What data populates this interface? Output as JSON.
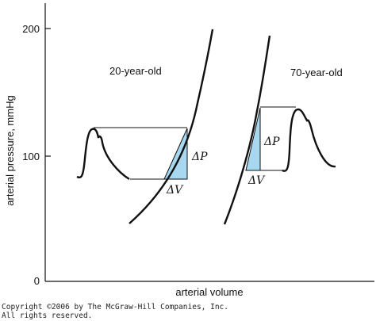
{
  "figure": {
    "y_axis_label": "arterial pressure, mmHg",
    "x_axis_label": "arterial volume",
    "y_ticks": [
      "200",
      "100",
      "0"
    ],
    "curves": [
      {
        "label": "20-year-old",
        "delta_p": "ΔP",
        "delta_v": "ΔV"
      },
      {
        "label": "70-year-old",
        "delta_p": "ΔP",
        "delta_v": "ΔV"
      }
    ],
    "colors": {
      "highlight": "#a8d8f0",
      "ink": "#111111"
    }
  },
  "footer": {
    "copyright": "Copyright ©2006 by The McGraw-Hill Companies, Inc.",
    "rights": "All rights reserved."
  }
}
